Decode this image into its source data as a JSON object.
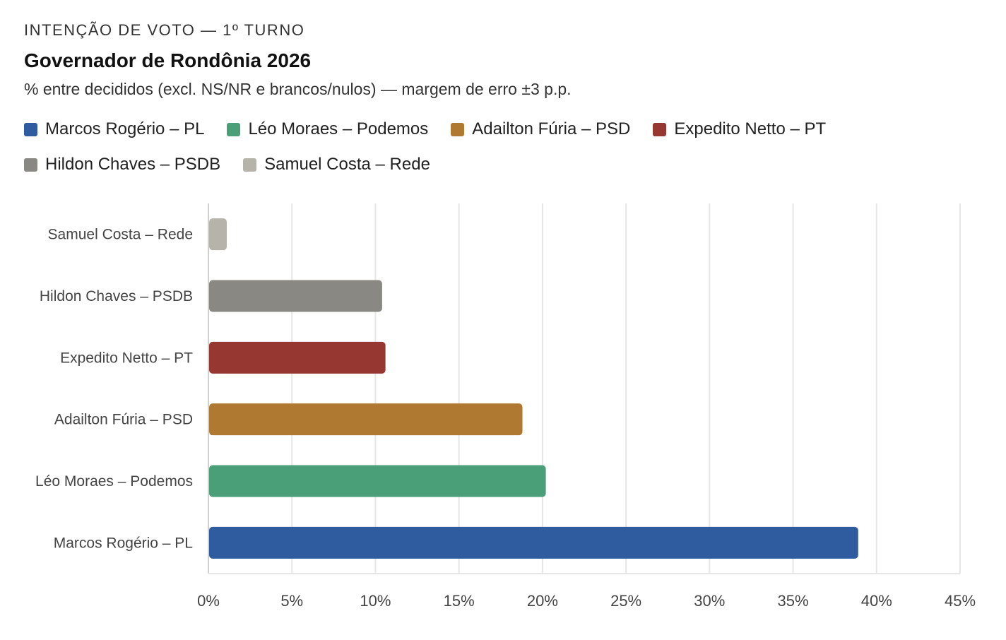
{
  "chart_data": {
    "type": "bar",
    "orientation": "horizontal",
    "kicker": "INTENÇÃO DE VOTO — 1º TURNO",
    "title": "Governador de Rondônia 2026",
    "subtitle": "% entre decididos (excl. NS/NR e brancos/nulos) — margem de erro ±3 p.p.",
    "categories": [
      "Samuel Costa – Rede",
      "Hildon Chaves – PSDB",
      "Expedito Netto – PT",
      "Adailton Fúria – PSD",
      "Léo Moraes – Podemos",
      "Marcos Rogério – PL"
    ],
    "values": [
      1.1,
      10.4,
      10.6,
      18.8,
      20.2,
      38.9
    ],
    "colors": [
      "#b6b3ab",
      "#8a8883",
      "#963732",
      "#b07932",
      "#4a9e78",
      "#2e5c9e"
    ],
    "xlim": [
      0,
      45
    ],
    "xticks": [
      "0%",
      "5%",
      "10%",
      "15%",
      "20%",
      "25%",
      "30%",
      "35%",
      "40%",
      "45%"
    ],
    "grid": true,
    "legend_placement": "top",
    "legend": [
      {
        "label": "Marcos Rogério – PL",
        "color": "#2e5c9e"
      },
      {
        "label": "Léo Moraes – Podemos",
        "color": "#4a9e78"
      },
      {
        "label": "Adailton Fúria – PSD",
        "color": "#b07932"
      },
      {
        "label": "Expedito Netto – PT",
        "color": "#963732"
      },
      {
        "label": "Hildon Chaves – PSDB",
        "color": "#8a8883"
      },
      {
        "label": "Samuel Costa – Rede",
        "color": "#b6b3ab"
      }
    ]
  }
}
